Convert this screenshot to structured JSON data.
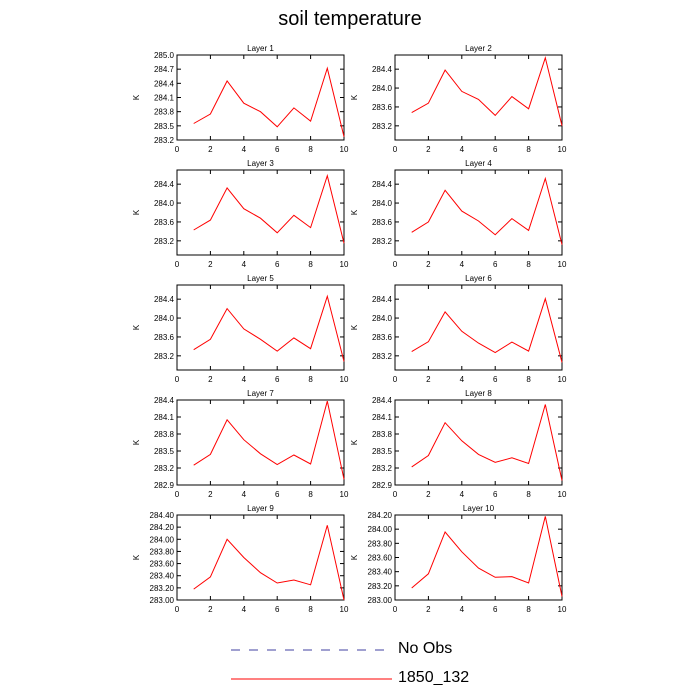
{
  "title": "soil temperature",
  "legend": [
    {
      "label": "No Obs",
      "style": "dashed",
      "color": "#4040a0"
    },
    {
      "label": "1850_132",
      "style": "solid",
      "color": "#ff0000"
    }
  ],
  "chart_data": [
    {
      "type": "line",
      "title": "Layer 1",
      "ylabel": "K",
      "xlim": [
        0,
        10
      ],
      "ylim": [
        283.2,
        285.0
      ],
      "xticks": [
        0,
        2,
        4,
        6,
        8,
        10
      ],
      "yticks": [
        "283.2",
        "283.5",
        "283.8",
        "284.1",
        "284.4",
        "284.7",
        "285.0"
      ],
      "x": [
        1,
        2,
        3,
        4,
        5,
        6,
        7,
        8,
        9,
        10
      ],
      "series": [
        {
          "name": "1850_132",
          "color": "#ff0000",
          "values": [
            283.55,
            283.75,
            284.45,
            283.98,
            283.8,
            283.48,
            283.88,
            283.6,
            284.72,
            283.27
          ]
        }
      ]
    },
    {
      "type": "line",
      "title": "Layer 2",
      "ylabel": "K",
      "xlim": [
        0,
        10
      ],
      "ylim": [
        282.9,
        284.7
      ],
      "xticks": [
        0,
        2,
        4,
        6,
        8,
        10
      ],
      "yticks": [
        "283.2",
        "283.6",
        "284.0",
        "284.4"
      ],
      "x": [
        1,
        2,
        3,
        4,
        5,
        6,
        7,
        8,
        9,
        10
      ],
      "series": [
        {
          "name": "1850_132",
          "color": "#ff0000",
          "values": [
            283.48,
            283.68,
            284.38,
            283.93,
            283.76,
            283.42,
            283.82,
            283.56,
            284.64,
            283.2
          ]
        }
      ]
    },
    {
      "type": "line",
      "title": "Layer 3",
      "ylabel": "K",
      "xlim": [
        0,
        10
      ],
      "ylim": [
        282.9,
        284.7
      ],
      "xticks": [
        0,
        2,
        4,
        6,
        8,
        10
      ],
      "yticks": [
        "283.2",
        "283.6",
        "284.0",
        "284.4"
      ],
      "x": [
        1,
        2,
        3,
        4,
        5,
        6,
        7,
        8,
        9,
        10
      ],
      "series": [
        {
          "name": "1850_132",
          "color": "#ff0000",
          "values": [
            283.43,
            283.64,
            284.32,
            283.88,
            283.68,
            283.37,
            283.74,
            283.48,
            284.58,
            283.15
          ]
        }
      ]
    },
    {
      "type": "line",
      "title": "Layer 4",
      "ylabel": "K",
      "xlim": [
        0,
        10
      ],
      "ylim": [
        282.9,
        284.7
      ],
      "xticks": [
        0,
        2,
        4,
        6,
        8,
        10
      ],
      "yticks": [
        "283.2",
        "283.6",
        "284.0",
        "284.4"
      ],
      "x": [
        1,
        2,
        3,
        4,
        5,
        6,
        7,
        8,
        9,
        10
      ],
      "series": [
        {
          "name": "1850_132",
          "color": "#ff0000",
          "values": [
            283.38,
            283.6,
            284.27,
            283.83,
            283.62,
            283.33,
            283.67,
            283.42,
            284.52,
            283.12
          ]
        }
      ]
    },
    {
      "type": "line",
      "title": "Layer 5",
      "ylabel": "K",
      "xlim": [
        0,
        10
      ],
      "ylim": [
        282.9,
        284.7
      ],
      "xticks": [
        0,
        2,
        4,
        6,
        8,
        10
      ],
      "yticks": [
        "283.2",
        "283.6",
        "284.0",
        "284.4"
      ],
      "x": [
        1,
        2,
        3,
        4,
        5,
        6,
        7,
        8,
        9,
        10
      ],
      "series": [
        {
          "name": "1850_132",
          "color": "#ff0000",
          "values": [
            283.33,
            283.55,
            284.2,
            283.77,
            283.55,
            283.3,
            283.58,
            283.35,
            284.46,
            283.08
          ]
        }
      ]
    },
    {
      "type": "line",
      "title": "Layer 6",
      "ylabel": "K",
      "xlim": [
        0,
        10
      ],
      "ylim": [
        282.9,
        284.7
      ],
      "xticks": [
        0,
        2,
        4,
        6,
        8,
        10
      ],
      "yticks": [
        "283.2",
        "283.6",
        "284.0",
        "284.4"
      ],
      "x": [
        1,
        2,
        3,
        4,
        5,
        6,
        7,
        8,
        9,
        10
      ],
      "series": [
        {
          "name": "1850_132",
          "color": "#ff0000",
          "values": [
            283.29,
            283.5,
            284.13,
            283.72,
            283.47,
            283.27,
            283.49,
            283.3,
            284.41,
            283.06
          ]
        }
      ]
    },
    {
      "type": "line",
      "title": "Layer 7",
      "ylabel": "K",
      "xlim": [
        0,
        10
      ],
      "ylim": [
        282.9,
        284.4
      ],
      "xticks": [
        0,
        2,
        4,
        6,
        8,
        10
      ],
      "yticks": [
        "282.9",
        "283.2",
        "283.5",
        "283.8",
        "284.1",
        "284.4"
      ],
      "x": [
        1,
        2,
        3,
        4,
        5,
        6,
        7,
        8,
        9,
        10
      ],
      "series": [
        {
          "name": "1850_132",
          "color": "#ff0000",
          "values": [
            283.25,
            283.44,
            284.05,
            283.7,
            283.45,
            283.26,
            283.43,
            283.27,
            284.38,
            283.0
          ]
        }
      ]
    },
    {
      "type": "line",
      "title": "Layer 8",
      "ylabel": "K",
      "xlim": [
        0,
        10
      ],
      "ylim": [
        282.9,
        284.4
      ],
      "xticks": [
        0,
        2,
        4,
        6,
        8,
        10
      ],
      "yticks": [
        "282.9",
        "283.2",
        "283.5",
        "283.8",
        "284.1",
        "284.4"
      ],
      "x": [
        1,
        2,
        3,
        4,
        5,
        6,
        7,
        8,
        9,
        10
      ],
      "series": [
        {
          "name": "1850_132",
          "color": "#ff0000",
          "values": [
            283.22,
            283.42,
            284.0,
            283.68,
            283.44,
            283.3,
            283.38,
            283.28,
            284.32,
            282.98
          ]
        }
      ]
    },
    {
      "type": "line",
      "title": "Layer 9",
      "ylabel": "K",
      "xlim": [
        0,
        10
      ],
      "ylim": [
        283.0,
        284.4
      ],
      "xticks": [
        0,
        2,
        4,
        6,
        8,
        10
      ],
      "yticks": [
        "283.00",
        "283.20",
        "283.40",
        "283.60",
        "283.80",
        "284.00",
        "284.20",
        "284.40"
      ],
      "x": [
        1,
        2,
        3,
        4,
        5,
        6,
        7,
        8,
        9,
        10
      ],
      "series": [
        {
          "name": "1850_132",
          "color": "#ff0000",
          "values": [
            283.18,
            283.38,
            284.0,
            283.7,
            283.45,
            283.28,
            283.33,
            283.25,
            284.23,
            283.0
          ]
        }
      ]
    },
    {
      "type": "line",
      "title": "Layer 10",
      "ylabel": "K",
      "xlim": [
        0,
        10
      ],
      "ylim": [
        283.0,
        284.2
      ],
      "xticks": [
        0,
        2,
        4,
        6,
        8,
        10
      ],
      "yticks": [
        "283.00",
        "283.20",
        "283.40",
        "283.60",
        "283.80",
        "284.00",
        "284.20"
      ],
      "x": [
        1,
        2,
        3,
        4,
        5,
        6,
        7,
        8,
        9,
        10
      ],
      "series": [
        {
          "name": "1850_132",
          "color": "#ff0000",
          "values": [
            283.17,
            283.37,
            283.96,
            283.68,
            283.45,
            283.32,
            283.33,
            283.24,
            284.18,
            283.05
          ]
        }
      ]
    }
  ]
}
